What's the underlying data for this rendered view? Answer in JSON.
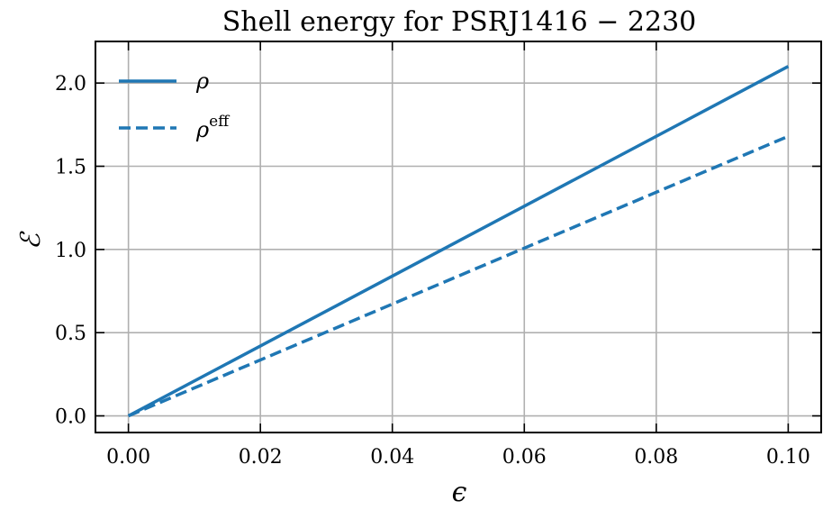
{
  "chart_data": {
    "type": "line",
    "title": "Shell energy for PSRJ1416 − 2230",
    "xlabel": "ϵ",
    "ylabel": "ℰ",
    "xlim": [
      -0.005,
      0.105
    ],
    "ylim": [
      -0.1,
      2.25
    ],
    "xticks": [
      0.0,
      0.02,
      0.04,
      0.06,
      0.08,
      0.1
    ],
    "xtick_labels": [
      "0.00",
      "0.02",
      "0.04",
      "0.06",
      "0.08",
      "0.10"
    ],
    "yticks": [
      0.0,
      0.5,
      1.0,
      1.5,
      2.0
    ],
    "ytick_labels": [
      "0.0",
      "0.5",
      "1.0",
      "1.5",
      "2.0"
    ],
    "grid": true,
    "legend_position": "top-left",
    "series": [
      {
        "name": "ρ",
        "color": "#1f77b4",
        "style": "solid",
        "x": [
          0.0,
          0.1
        ],
        "y": [
          0.0,
          2.1
        ]
      },
      {
        "name": "ρeff",
        "name_base": "ρ",
        "name_sup": "eff",
        "color": "#1f77b4",
        "style": "dashed",
        "x": [
          0.0,
          0.1
        ],
        "y": [
          0.0,
          1.68
        ]
      }
    ]
  }
}
